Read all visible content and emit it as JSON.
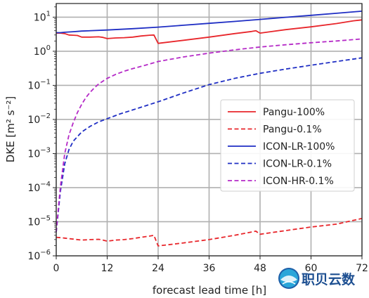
{
  "chart_data": {
    "type": "line",
    "xlabel": "forecast lead time [h]",
    "ylabel": "DKE [m² s⁻²]",
    "xlim": [
      0,
      72
    ],
    "ylim_log10": [
      -6,
      1.4
    ],
    "yscale": "log",
    "grid": true,
    "legend_position": "center-right",
    "x_ticks": [
      "0",
      "12",
      "24",
      "36",
      "48",
      "60",
      "72"
    ],
    "y_ticks": [
      {
        "exp": -6,
        "label": "−6"
      },
      {
        "exp": -5,
        "label": "−5"
      },
      {
        "exp": -4,
        "label": "−4"
      },
      {
        "exp": -3,
        "label": "−3"
      },
      {
        "exp": -2,
        "label": "−2"
      },
      {
        "exp": -1,
        "label": "−1"
      },
      {
        "exp": 0,
        "label": "0"
      },
      {
        "exp": 1,
        "label": "1"
      }
    ],
    "y_tick_base": "10",
    "series": [
      {
        "name": "Pangu-100%",
        "color": "#e8262b",
        "dash": false,
        "x": [
          0,
          1,
          2,
          3,
          4,
          5,
          6,
          8,
          10,
          11,
          12,
          14,
          16,
          18,
          20,
          22,
          23,
          24,
          30,
          36,
          42,
          46,
          47,
          48,
          54,
          60,
          66,
          70,
          72
        ],
        "y": [
          3.4,
          3.4,
          3.3,
          3.0,
          2.95,
          2.9,
          2.6,
          2.6,
          2.65,
          2.55,
          2.35,
          2.45,
          2.5,
          2.6,
          2.8,
          2.95,
          3.0,
          1.7,
          2.1,
          2.6,
          3.3,
          3.8,
          4.0,
          3.4,
          4.3,
          5.2,
          6.5,
          7.8,
          8.3
        ]
      },
      {
        "name": "Pangu-0.1%",
        "color": "#e8262b",
        "dash": true,
        "x": [
          0,
          2,
          4,
          6,
          8,
          10,
          11,
          12,
          14,
          16,
          18,
          20,
          22,
          23,
          24,
          30,
          36,
          42,
          46,
          47,
          48,
          54,
          60,
          66,
          70,
          72
        ],
        "y": [
          3.5e-06,
          3.3e-06,
          3.1e-06,
          2.9e-06,
          3e-06,
          3.05e-06,
          2.9e-06,
          2.7e-06,
          2.9e-06,
          3e-06,
          3.2e-06,
          3.5e-06,
          3.8e-06,
          4e-06,
          1.95e-06,
          2.4e-06,
          3e-06,
          4e-06,
          5e-06,
          5.3e-06,
          4.3e-06,
          5.5e-06,
          7e-06,
          8.5e-06,
          1.1e-05,
          1.25e-05
        ]
      },
      {
        "name": "ICON-LR-100%",
        "color": "#1f2ec4",
        "dash": false,
        "x": [
          0,
          1,
          2,
          4,
          6,
          12,
          18,
          24,
          30,
          36,
          42,
          48,
          54,
          60,
          66,
          72
        ],
        "y": [
          3.5,
          3.5,
          3.6,
          3.75,
          3.9,
          4.2,
          4.6,
          5.1,
          5.8,
          6.6,
          7.5,
          8.6,
          9.9,
          11.3,
          13.0,
          15.0
        ]
      },
      {
        "name": "ICON-LR-0.1%",
        "color": "#1f2ec4",
        "dash": true,
        "x": [
          0,
          0.5,
          1,
          2,
          3,
          4,
          6,
          8,
          10,
          12,
          15,
          18,
          21,
          24,
          30,
          36,
          42,
          48,
          54,
          60,
          66,
          72
        ],
        "y": [
          5e-06,
          2e-05,
          8e-05,
          0.0005,
          0.0013,
          0.0023,
          0.0043,
          0.0063,
          0.0085,
          0.0105,
          0.0145,
          0.019,
          0.025,
          0.033,
          0.06,
          0.105,
          0.16,
          0.225,
          0.3,
          0.39,
          0.5,
          0.64
        ]
      },
      {
        "name": "ICON-HR-0.1%",
        "color": "#b52ac7",
        "dash": true,
        "x": [
          0,
          0.5,
          1,
          2,
          3,
          4,
          5,
          6,
          7,
          8,
          9,
          10,
          12,
          14,
          16,
          18,
          21,
          24,
          30,
          36,
          42,
          48,
          54,
          60,
          66,
          72
        ],
        "y": [
          5e-06,
          2.5e-05,
          0.00011,
          0.001,
          0.0035,
          0.008,
          0.016,
          0.028,
          0.044,
          0.063,
          0.085,
          0.11,
          0.16,
          0.21,
          0.26,
          0.31,
          0.39,
          0.5,
          0.68,
          0.88,
          1.1,
          1.33,
          1.55,
          1.78,
          2.0,
          2.3
        ]
      }
    ]
  },
  "watermark": {
    "text": "职贝云数"
  }
}
